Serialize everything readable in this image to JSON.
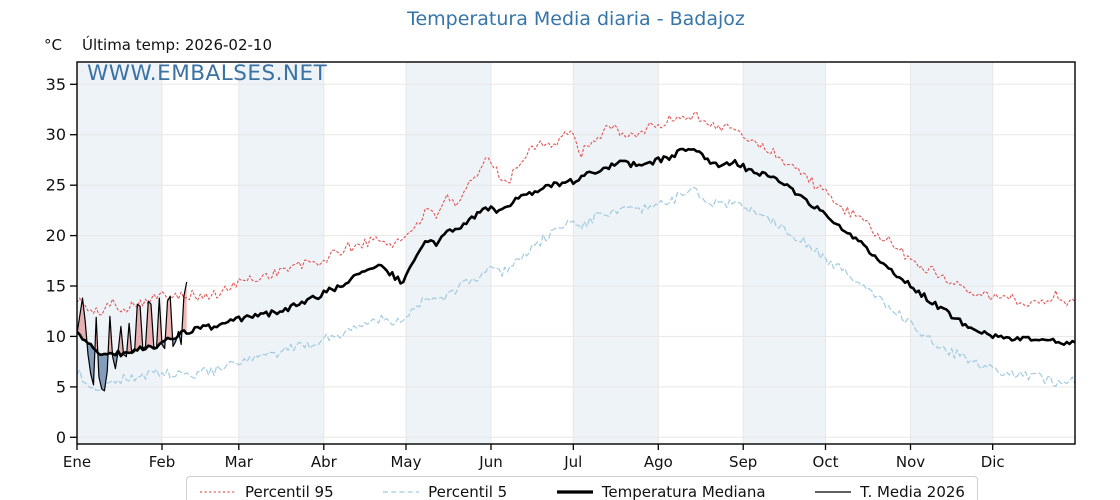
{
  "header": {
    "title": "Temperatura Media diaria - Badajoz",
    "unit": "°C",
    "last_temp": "Última temp: 2026-02-10"
  },
  "watermark": "WWW.EMBALSES.NET",
  "style": {
    "title_color": "#3675a9",
    "watermark_color": "#3a72a4",
    "band_color": "#eef3f8",
    "grid_color": "#e7e7e7",
    "frame_color": "#000000",
    "fill_above": "rgba(222,95,95,0.45)",
    "fill_below": "rgba(60,100,150,0.6)"
  },
  "legend": {
    "items": [
      {
        "label": "Percentil 95",
        "color": "#e25555",
        "width": 1.2,
        "dash": "2 2.6"
      },
      {
        "label": "Percentil 5",
        "color": "#a3cbe0",
        "width": 1.3,
        "dash": "5 3.2"
      },
      {
        "label": "Temperatura Mediana",
        "color": "#000000",
        "width": 3.2,
        "dash": ""
      },
      {
        "label": "T. Media 2026",
        "color": "#000000",
        "width": 1.2,
        "dash": ""
      }
    ]
  },
  "chart_data": {
    "type": "line",
    "title": "Temperatura Media diaria - Badajoz",
    "ylabel": "°C",
    "ylim": [
      0,
      35
    ],
    "y_ticks": [
      0,
      5,
      10,
      15,
      20,
      25,
      30,
      35
    ],
    "month_labels": [
      "Ene",
      "Feb",
      "Mar",
      "Abr",
      "May",
      "Jun",
      "Jul",
      "Ago",
      "Sep",
      "Oct",
      "Nov",
      "Dic"
    ],
    "month_starts": [
      0,
      31,
      59,
      90,
      120,
      151,
      181,
      212,
      243,
      273,
      304,
      334
    ],
    "days_in_year": 365,
    "legend_position": "bottom",
    "series": [
      {
        "name": "Percentil 95",
        "color": "#e25555",
        "dash": "2 2.6",
        "width": 1.1,
        "noise": 0.55,
        "days": [
          1,
          4,
          7,
          10,
          14,
          18,
          22,
          26,
          31,
          36,
          41,
          46,
          51,
          56,
          59,
          64,
          69,
          74,
          80,
          85,
          90,
          95,
          100,
          105,
          111,
          115,
          120,
          124,
          128,
          132,
          136,
          139,
          143,
          147,
          151,
          155,
          158,
          162,
          166,
          170,
          174,
          178,
          181,
          184,
          188,
          192,
          196,
          200,
          204,
          208,
          212,
          216,
          220,
          224,
          227,
          230,
          234,
          238,
          241,
          245,
          249,
          253,
          257,
          261,
          265,
          269,
          273,
          278,
          283,
          288,
          293,
          298,
          304,
          309,
          314,
          319,
          324,
          329,
          334,
          339,
          344,
          349,
          354,
          358,
          362,
          365
        ],
        "values": [
          13.8,
          12.9,
          12.2,
          12.6,
          13.3,
          12.8,
          13.3,
          13.6,
          13.9,
          14.3,
          14.2,
          13.9,
          14.1,
          14.6,
          15.3,
          15.6,
          16.0,
          16.4,
          16.9,
          17.2,
          17.4,
          18.2,
          18.8,
          19.2,
          19.6,
          19.2,
          19.6,
          21.0,
          22.3,
          22.0,
          24.3,
          22.4,
          24.5,
          26.0,
          27.7,
          26.2,
          25.3,
          27.0,
          28.5,
          29.5,
          28.8,
          29.8,
          30.3,
          28.2,
          28.6,
          30.0,
          31.0,
          30.2,
          29.6,
          30.6,
          30.9,
          31.2,
          31.9,
          31.7,
          32.1,
          31.4,
          30.6,
          31.0,
          30.2,
          29.8,
          29.2,
          28.5,
          27.9,
          27.1,
          26.3,
          25.4,
          24.4,
          23.2,
          22.2,
          21.2,
          20.2,
          19.2,
          17.8,
          17.0,
          16.3,
          15.6,
          15.0,
          14.5,
          14.0,
          13.8,
          13.6,
          13.3,
          13.5,
          14.2,
          13.6,
          13.0
        ]
      },
      {
        "name": "Percentil 5",
        "color": "#a3cbe0",
        "dash": "5 3.2",
        "width": 1.2,
        "noise": 0.5,
        "days": [
          1,
          4,
          8,
          12,
          15,
          20,
          25,
          31,
          36,
          41,
          46,
          51,
          56,
          59,
          65,
          70,
          75,
          80,
          85,
          90,
          95,
          100,
          105,
          111,
          115,
          120,
          124,
          128,
          132,
          136,
          141,
          146,
          151,
          155,
          160,
          165,
          170,
          175,
          181,
          185,
          190,
          195,
          200,
          205,
          210,
          215,
          220,
          224,
          228,
          232,
          236,
          240,
          244,
          248,
          252,
          256,
          260,
          264,
          268,
          273,
          278,
          283,
          288,
          293,
          298,
          304,
          309,
          314,
          319,
          324,
          329,
          334,
          339,
          344,
          349,
          354,
          358,
          362,
          365
        ],
        "values": [
          6.6,
          5.4,
          4.8,
          5.2,
          5.6,
          5.9,
          6.1,
          6.4,
          6.2,
          6.1,
          6.4,
          6.6,
          6.9,
          7.3,
          7.7,
          8.0,
          8.4,
          8.8,
          9.2,
          9.6,
          10.1,
          10.6,
          11.2,
          11.8,
          11.5,
          11.9,
          12.8,
          13.6,
          13.4,
          14.2,
          14.9,
          15.7,
          16.5,
          16.2,
          17.3,
          18.2,
          19.4,
          20.4,
          21.4,
          21.0,
          21.8,
          22.3,
          22.6,
          22.3,
          22.8,
          23.2,
          23.8,
          24.6,
          24.0,
          23.4,
          23.0,
          23.3,
          22.9,
          22.4,
          21.9,
          21.3,
          20.6,
          19.8,
          19.0,
          18.0,
          16.9,
          15.9,
          14.9,
          13.9,
          12.9,
          11.5,
          10.4,
          9.4,
          8.6,
          7.9,
          7.3,
          6.8,
          6.5,
          6.2,
          6.0,
          5.8,
          5.5,
          5.8,
          5.6
        ]
      },
      {
        "name": "Temperatura Mediana",
        "color": "#000000",
        "dash": "",
        "width": 2.6,
        "noise": 0.3,
        "days": [
          1,
          5,
          10,
          15,
          20,
          25,
          31,
          36,
          41,
          46,
          52,
          59,
          65,
          72,
          80,
          86,
          90,
          95,
          100,
          105,
          111,
          115,
          120,
          124,
          128,
          132,
          136,
          141,
          146,
          151,
          155,
          160,
          165,
          170,
          175,
          181,
          186,
          191,
          196,
          200,
          205,
          210,
          215,
          219,
          224,
          228,
          232,
          236,
          240,
          244,
          248,
          252,
          256,
          260,
          264,
          268,
          273,
          278,
          283,
          288,
          293,
          298,
          304,
          309,
          314,
          319,
          324,
          329,
          334,
          339,
          344,
          349,
          354,
          359,
          365
        ],
        "values": [
          10.2,
          9.4,
          8.2,
          8.3,
          8.4,
          8.8,
          9.2,
          9.8,
          10.5,
          10.8,
          11.0,
          11.6,
          12.0,
          12.3,
          13.0,
          13.6,
          14.1,
          14.8,
          15.5,
          16.5,
          17.1,
          16.3,
          15.3,
          17.5,
          19.5,
          19.2,
          20.3,
          21.0,
          21.9,
          22.8,
          22.3,
          23.4,
          23.9,
          24.5,
          25.0,
          25.3,
          25.9,
          26.4,
          26.9,
          27.2,
          27.0,
          27.3,
          27.6,
          28.0,
          28.8,
          28.2,
          27.4,
          27.0,
          27.3,
          26.8,
          26.4,
          26.1,
          25.5,
          24.8,
          24.1,
          23.3,
          22.2,
          21.2,
          20.2,
          18.9,
          17.8,
          16.6,
          15.2,
          14.2,
          13.2,
          12.2,
          11.4,
          10.8,
          10.2,
          10.0,
          9.8,
          9.6,
          9.5,
          9.5,
          9.3
        ]
      }
    ],
    "t_media_2026": {
      "name": "T. Media 2026",
      "color": "#000000",
      "width": 1.2,
      "start_day": 1,
      "end_date": "2026-02-10",
      "daily_values": [
        10.3,
        12.0,
        13.8,
        11.5,
        8.2,
        6.3,
        5.2,
        11.9,
        6.0,
        4.8,
        4.6,
        6.5,
        12.0,
        8.0,
        6.8,
        8.5,
        11.0,
        8.2,
        8.0,
        11.3,
        8.3,
        8.5,
        13.2,
        13.0,
        8.8,
        9.0,
        13.5,
        13.2,
        9.0,
        8.8,
        13.8,
        9.2,
        8.8,
        13.5,
        14.0,
        9.0,
        9.5,
        10.5,
        9.2,
        14.0,
        15.4
      ]
    }
  }
}
